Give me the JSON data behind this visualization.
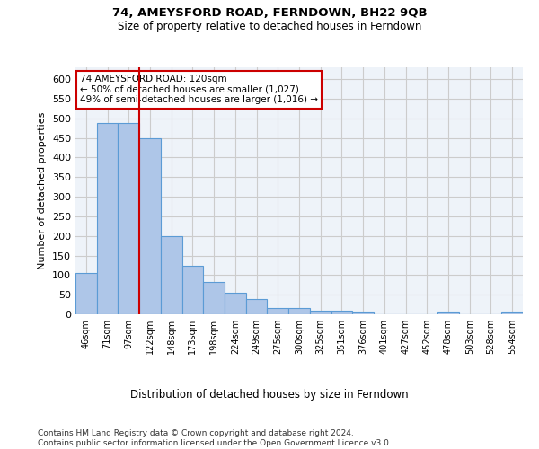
{
  "title1": "74, AMEYSFORD ROAD, FERNDOWN, BH22 9QB",
  "title2": "Size of property relative to detached houses in Ferndown",
  "xlabel": "Distribution of detached houses by size in Ferndown",
  "ylabel": "Number of detached properties",
  "categories": [
    "46sqm",
    "71sqm",
    "97sqm",
    "122sqm",
    "148sqm",
    "173sqm",
    "198sqm",
    "224sqm",
    "249sqm",
    "275sqm",
    "300sqm",
    "325sqm",
    "351sqm",
    "376sqm",
    "401sqm",
    "427sqm",
    "452sqm",
    "478sqm",
    "503sqm",
    "528sqm",
    "554sqm"
  ],
  "values": [
    105,
    487,
    487,
    450,
    200,
    123,
    83,
    56,
    38,
    15,
    15,
    10,
    10,
    8,
    1,
    1,
    1,
    8,
    1,
    1,
    8
  ],
  "bar_color": "#aec6e8",
  "bar_edge_color": "#5b9bd5",
  "vline_x": 2.5,
  "vline_color": "#cc0000",
  "annotation_text": "74 AMEYSFORD ROAD: 120sqm\n← 50% of detached houses are smaller (1,027)\n49% of semi-detached houses are larger (1,016) →",
  "annotation_box_color": "#ffffff",
  "annotation_box_edge": "#cc0000",
  "footer": "Contains HM Land Registry data © Crown copyright and database right 2024.\nContains public sector information licensed under the Open Government Licence v3.0.",
  "ylim": [
    0,
    630
  ],
  "yticks": [
    0,
    50,
    100,
    150,
    200,
    250,
    300,
    350,
    400,
    450,
    500,
    550,
    600
  ],
  "grid_color": "#cccccc",
  "bg_color": "#eef3f9",
  "title1_fontsize": 9.5,
  "title2_fontsize": 8.5,
  "xlabel_fontsize": 8.5,
  "ylabel_fontsize": 8,
  "tick_fontsize": 7,
  "footer_fontsize": 6.5,
  "annotation_fontsize": 7.5
}
